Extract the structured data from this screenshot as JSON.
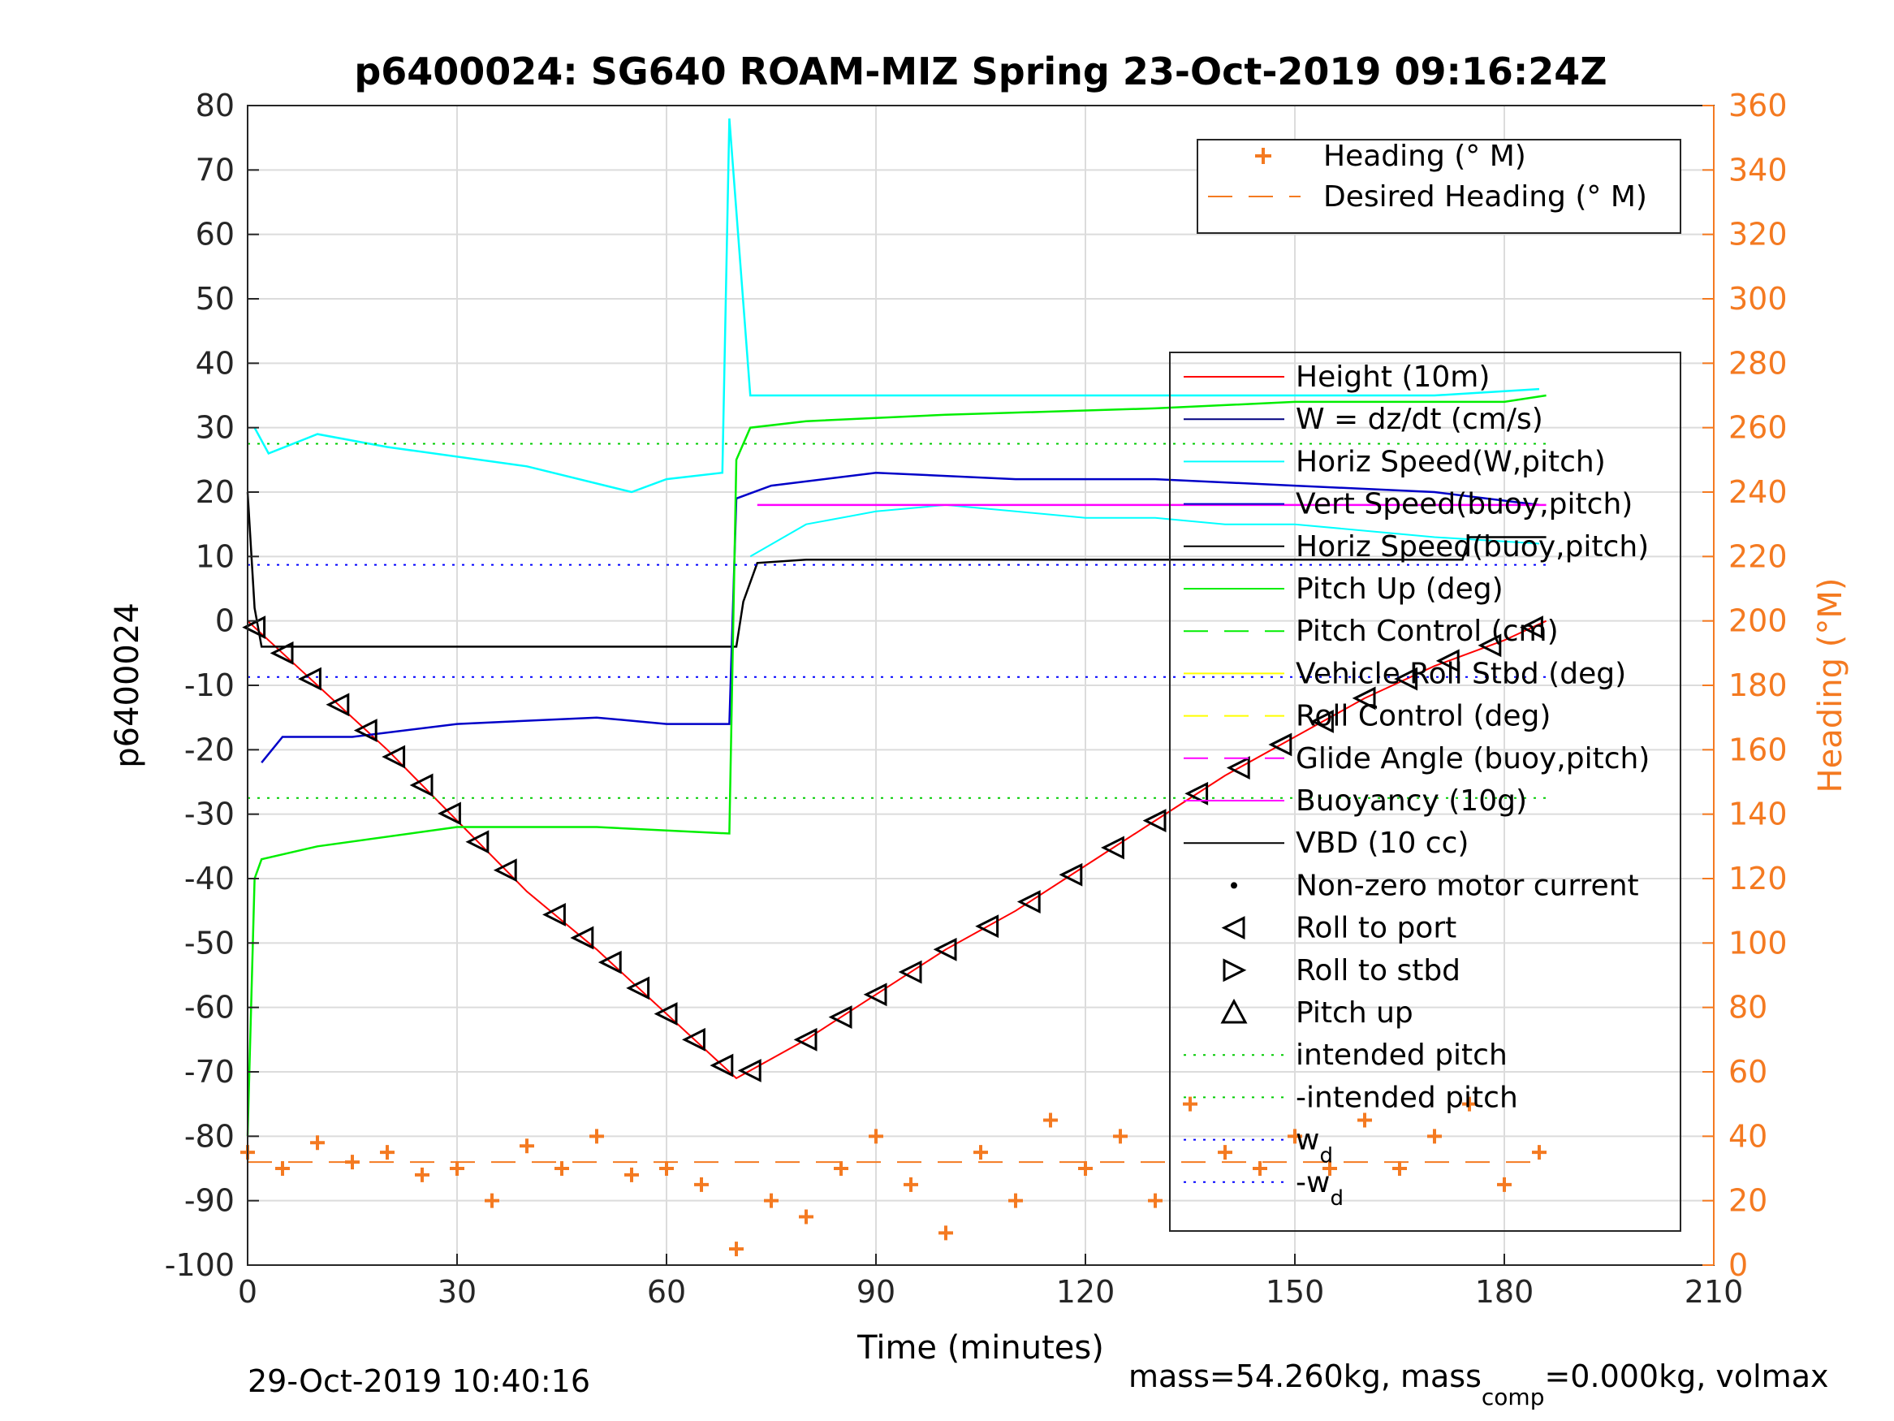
{
  "chart_data": {
    "type": "line",
    "title": "p6400024: SG640 ROAM-MIZ Spring 23-Oct-2019 09:16:24Z",
    "xlabel": "Time (minutes)",
    "ylabel_left": "p6400024",
    "ylabel_right": "Heading (°M)",
    "xlim": [
      0,
      210
    ],
    "ylim_left": [
      -100,
      80
    ],
    "ylim_right": [
      0,
      360
    ],
    "x_ticks": [
      "0",
      "30",
      "60",
      "90",
      "120",
      "150",
      "180",
      "210"
    ],
    "y_ticks_left": [
      "-100",
      "-90",
      "-80",
      "-70",
      "-60",
      "-50",
      "-40",
      "-30",
      "-20",
      "-10",
      "0",
      "10",
      "20",
      "30",
      "40",
      "50",
      "60",
      "70",
      "80"
    ],
    "y_ticks_right": [
      "0",
      "20",
      "40",
      "60",
      "80",
      "100",
      "120",
      "140",
      "160",
      "180",
      "200",
      "220",
      "240",
      "260",
      "280",
      "300",
      "320",
      "340",
      "360"
    ],
    "grid": true,
    "colors": {
      "heading": "#f47a21",
      "height": "#ff0000",
      "w": "#000080",
      "horiz_speed_w": "#00ffff",
      "vert_speed": "#0000c8",
      "pitch": "#00ee00",
      "roll": "#ffff00",
      "glide": "#ff00ff",
      "vbd": "#000000",
      "intended_pitch": "#00cc00",
      "wd": "#0000ff"
    },
    "heading_legend": {
      "placement": "top-right",
      "entries": [
        "Heading (° M)",
        "Desired Heading (° M)"
      ]
    },
    "main_legend": {
      "placement": "right",
      "entries": [
        {
          "label": "Height (10m)"
        },
        {
          "label": "W = dz/dt (cm/s)"
        },
        {
          "label": "Horiz Speed(W,pitch)"
        },
        {
          "label": "Vert Speed(buoy,pitch)"
        },
        {
          "label": "Horiz Speed(buoy,pitch)"
        },
        {
          "label": "Pitch Up (deg)"
        },
        {
          "label": "Pitch Control (cm)"
        },
        {
          "label": "Vehicle Roll Stbd (deg)"
        },
        {
          "label": "Roll Control (deg)"
        },
        {
          "label": "Glide Angle (buoy,pitch)"
        },
        {
          "label": "Buoyancy (10g)"
        },
        {
          "label": "VBD (10 cc)"
        },
        {
          "label": "Non-zero motor current"
        },
        {
          "label": "Roll to port"
        },
        {
          "label": "Roll to stbd"
        },
        {
          "label": "Pitch up"
        },
        {
          "label": "intended pitch"
        },
        {
          "label": "-intended pitch"
        },
        {
          "label": "w",
          "sub": "d"
        },
        {
          "label": "-w",
          "sub": "d"
        }
      ]
    },
    "series": [
      {
        "name": "Height (10m)",
        "x": [
          0,
          10,
          20,
          30,
          40,
          50,
          60,
          70,
          80,
          90,
          100,
          110,
          120,
          130,
          140,
          150,
          160,
          170,
          180,
          186
        ],
        "y": [
          0,
          -10,
          -20,
          -31,
          -42,
          -51,
          -61,
          -71,
          -65,
          -58,
          -51,
          -45,
          -38,
          -31,
          -24,
          -18,
          -12,
          -7,
          -3,
          0
        ]
      },
      {
        "name": "W = dz/dt (cm/s)",
        "x": [
          0,
          1,
          2,
          30,
          60,
          70,
          71,
          73,
          80,
          100,
          130,
          150,
          174,
          175,
          186
        ],
        "y": [
          20,
          2,
          -4,
          -4,
          -4,
          -4,
          3,
          9,
          9.5,
          9.5,
          9.5,
          9.5,
          9.5,
          13,
          13
        ]
      },
      {
        "name": "Horiz Speed(W,pitch)",
        "x": [
          1,
          3,
          10,
          20,
          40,
          55,
          60,
          68,
          69,
          72,
          90,
          110,
          130,
          150,
          170,
          185
        ],
        "y": [
          30,
          26,
          29,
          27,
          24,
          20,
          22,
          23,
          78,
          35,
          35,
          35,
          35,
          35,
          35,
          36
        ]
      },
      {
        "name": "Vert Speed(buoy,pitch)",
        "x": [
          2,
          5,
          15,
          30,
          50,
          60,
          69,
          70,
          75,
          90,
          110,
          130,
          150,
          170,
          185
        ],
        "y": [
          -22,
          -18,
          -18,
          -16,
          -15,
          -16,
          -16,
          19,
          21,
          23,
          22,
          22,
          21,
          20,
          18
        ]
      },
      {
        "name": "Horiz Speed(buoy,pitch)",
        "x": [
          72,
          80,
          90,
          100,
          110,
          120,
          130,
          140,
          150,
          160,
          170,
          185
        ],
        "y": [
          10,
          15,
          17,
          18,
          17,
          16,
          16,
          15,
          15,
          14,
          13,
          12
        ]
      },
      {
        "name": "Pitch Up (deg)",
        "x": [
          0,
          1,
          2,
          10,
          30,
          50,
          69,
          70,
          72,
          80,
          100,
          130,
          150,
          180,
          186
        ],
        "y": [
          -80,
          -40,
          -37,
          -35,
          -32,
          -32,
          -33,
          25,
          30,
          31,
          32,
          33,
          34,
          34,
          35
        ]
      },
      {
        "name": "Buoyancy (10g)",
        "x": [
          73,
          186
        ],
        "y": [
          18,
          18
        ]
      },
      {
        "name": "intended pitch",
        "x": [
          0,
          186
        ],
        "y": [
          27.5,
          27.5
        ]
      },
      {
        "name": "-intended pitch",
        "x": [
          0,
          186
        ],
        "y": [
          -27.5,
          -27.5
        ]
      },
      {
        "name": "w_d",
        "x": [
          0,
          186
        ],
        "y": [
          8.7,
          8.7
        ]
      },
      {
        "name": "-w_d",
        "x": [
          0,
          186
        ],
        "y": [
          -8.7,
          -8.7
        ]
      },
      {
        "name": "Desired Heading (° M)",
        "x": [
          0,
          186
        ],
        "y_right": [
          32,
          32
        ]
      },
      {
        "name": "Heading (° M)",
        "x": [
          0,
          5,
          10,
          15,
          20,
          25,
          30,
          35,
          40,
          45,
          50,
          55,
          60,
          65,
          70,
          75,
          80,
          85,
          90,
          95,
          100,
          105,
          110,
          115,
          120,
          125,
          130,
          135,
          140,
          145,
          150,
          155,
          160,
          165,
          170,
          175,
          180,
          185
        ],
        "y_right": [
          35,
          30,
          38,
          32,
          35,
          28,
          30,
          20,
          37,
          30,
          40,
          28,
          30,
          25,
          5,
          20,
          15,
          30,
          40,
          25,
          10,
          35,
          20,
          45,
          30,
          40,
          20,
          50,
          35,
          30,
          40,
          30,
          45,
          30,
          40,
          50,
          25,
          35
        ]
      }
    ],
    "markers": {
      "roll_to_port_x": [
        1,
        5,
        9,
        13,
        17,
        21,
        25,
        29,
        33,
        37,
        44,
        48,
        52,
        56,
        60,
        64,
        68,
        72,
        80,
        85,
        90,
        95,
        100,
        106,
        112,
        118,
        124,
        130,
        136,
        142,
        148,
        154,
        160,
        166,
        172,
        178,
        184
      ]
    },
    "footer": {
      "timestamp": "29-Oct-2019 10:40:16",
      "mass_text": "mass=54.260kg, mass",
      "mass_sub": "comp",
      "mass_tail": "=0.000kg, volmax"
    }
  }
}
